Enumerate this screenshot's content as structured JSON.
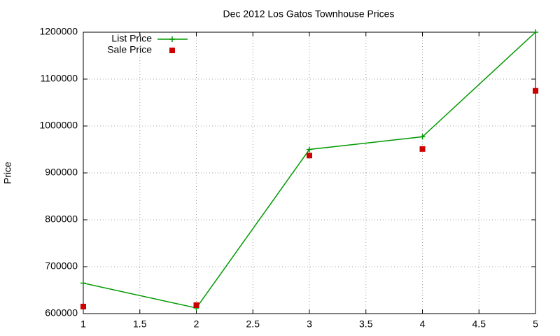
{
  "chart_data": {
    "type": "line",
    "title": "Dec 2012 Los Gatos Townhouse Prices",
    "y_label": "Price",
    "x": [
      1,
      2,
      3,
      4,
      5
    ],
    "series": [
      {
        "name": "List Price",
        "color": "#009900",
        "line": true,
        "marker": "plus",
        "values": [
          665000,
          612000,
          950000,
          977000,
          1200000
        ]
      },
      {
        "name": "Sale Price",
        "color": "#cc0000",
        "line": false,
        "marker": "square",
        "values": [
          615000,
          618000,
          937000,
          951000,
          1075000
        ]
      }
    ],
    "xlim": [
      1,
      5
    ],
    "xticks": [
      1,
      1.5,
      2,
      2.5,
      3,
      3.5,
      4,
      4.5,
      5
    ],
    "ylim": [
      600000,
      1200000
    ],
    "yticks": [
      600000,
      700000,
      800000,
      900000,
      1000000,
      1100000,
      1200000
    ],
    "grid": true,
    "legend": "top-left"
  }
}
